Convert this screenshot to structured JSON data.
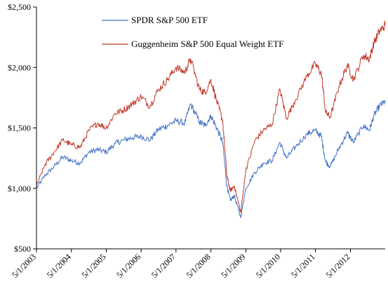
{
  "chart_data": {
    "type": "line",
    "title": "",
    "xlabel": "",
    "ylabel": "",
    "ylim": [
      500,
      2500
    ],
    "yticks": [
      "$500",
      "$1,000",
      "$1,500",
      "$2,000",
      "$2,500"
    ],
    "ytick_values": [
      500,
      1000,
      1500,
      2000,
      2500
    ],
    "xlim": [
      "2003-05-01",
      "2013-04-30"
    ],
    "xticks": [
      "5/1/2003",
      "5/1/2004",
      "5/1/2005",
      "5/1/2006",
      "5/1/2007",
      "5/1/2008",
      "5/1/2009",
      "5/1/2010",
      "5/1/2011",
      "5/1/2012"
    ],
    "grid": false,
    "legend_position": "top-center",
    "series": [
      {
        "name": "SPDR S&P 500 ETF",
        "color": "#4472C4",
        "x": [
          "2003-05-01",
          "2003-08-01",
          "2003-11-01",
          "2004-02-01",
          "2004-05-01",
          "2004-08-01",
          "2004-11-01",
          "2005-02-01",
          "2005-05-01",
          "2005-08-01",
          "2005-11-01",
          "2006-02-01",
          "2006-05-01",
          "2006-08-01",
          "2006-11-01",
          "2007-02-01",
          "2007-05-01",
          "2007-08-01",
          "2007-10-01",
          "2008-01-01",
          "2008-03-01",
          "2008-05-01",
          "2008-07-01",
          "2008-09-01",
          "2008-10-15",
          "2008-11-20",
          "2009-01-01",
          "2009-03-09",
          "2009-05-01",
          "2009-08-01",
          "2009-11-01",
          "2010-02-01",
          "2010-04-23",
          "2010-07-01",
          "2010-10-01",
          "2011-02-01",
          "2011-04-29",
          "2011-07-01",
          "2011-08-15",
          "2011-10-03",
          "2012-01-01",
          "2012-03-30",
          "2012-06-01",
          "2012-09-14",
          "2012-11-15",
          "2013-01-01",
          "2013-03-01",
          "2013-04-30"
        ],
        "y": [
          1000,
          1110,
          1180,
          1260,
          1230,
          1210,
          1300,
          1320,
          1300,
          1370,
          1400,
          1420,
          1430,
          1400,
          1490,
          1520,
          1560,
          1540,
          1700,
          1550,
          1520,
          1600,
          1500,
          1380,
          1020,
          900,
          940,
          760,
          1000,
          1130,
          1210,
          1230,
          1380,
          1250,
          1340,
          1450,
          1480,
          1430,
          1220,
          1180,
          1330,
          1460,
          1380,
          1520,
          1480,
          1600,
          1680,
          1720
        ]
      },
      {
        "name": "Guggenheim S&P 500 Equal Weight ETF",
        "color": "#C0392B",
        "x": [
          "2003-05-01",
          "2003-08-01",
          "2003-11-01",
          "2004-02-01",
          "2004-05-01",
          "2004-08-01",
          "2004-11-01",
          "2005-02-01",
          "2005-05-01",
          "2005-08-01",
          "2005-11-01",
          "2006-02-01",
          "2006-05-01",
          "2006-08-01",
          "2006-11-01",
          "2007-02-01",
          "2007-05-01",
          "2007-08-01",
          "2007-10-01",
          "2008-01-01",
          "2008-03-01",
          "2008-05-01",
          "2008-07-01",
          "2008-09-01",
          "2008-10-15",
          "2008-11-20",
          "2009-01-01",
          "2009-03-09",
          "2009-05-01",
          "2009-08-01",
          "2009-11-01",
          "2010-02-01",
          "2010-04-23",
          "2010-07-01",
          "2010-10-01",
          "2011-02-01",
          "2011-04-29",
          "2011-07-01",
          "2011-08-15",
          "2011-10-03",
          "2012-01-01",
          "2012-03-30",
          "2012-06-01",
          "2012-09-14",
          "2012-11-15",
          "2013-01-01",
          "2013-03-01",
          "2013-04-30"
        ],
        "y": [
          1020,
          1200,
          1300,
          1400,
          1360,
          1340,
          1480,
          1540,
          1500,
          1620,
          1650,
          1700,
          1760,
          1680,
          1820,
          1900,
          2000,
          1960,
          2070,
          1820,
          1790,
          1900,
          1720,
          1560,
          1100,
          980,
          1020,
          800,
          1150,
          1390,
          1480,
          1530,
          1820,
          1580,
          1730,
          1930,
          2030,
          1950,
          1630,
          1590,
          1840,
          2020,
          1900,
          2100,
          2070,
          2200,
          2300,
          2350
        ]
      }
    ]
  }
}
